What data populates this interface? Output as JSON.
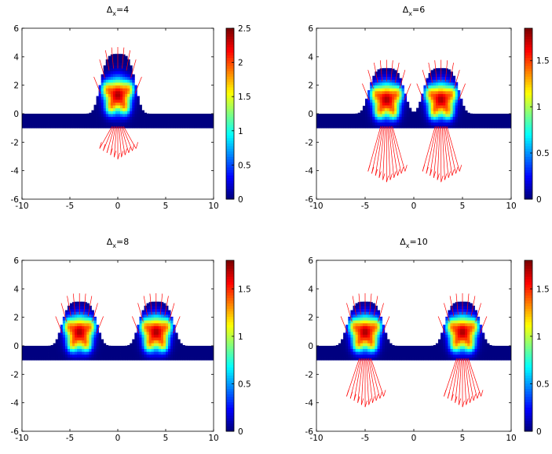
{
  "chart_data": [
    {
      "type": "heatmap",
      "title_base": "Δ",
      "title_sub": "x",
      "title_value": "=4",
      "x_ticks": [
        -10,
        -5,
        0,
        5,
        10
      ],
      "y_ticks": [
        -6,
        -4,
        -2,
        0,
        2,
        4,
        6
      ],
      "xlim": [
        -10,
        10
      ],
      "ylim": [
        -6,
        6
      ],
      "colorbar": {
        "min": 0,
        "max": 2.5,
        "ticks": [
          "0",
          "0.5",
          "1",
          "1.5",
          "2",
          "2.5"
        ],
        "tick_values": [
          0,
          0.5,
          1,
          1.5,
          2,
          2.5
        ]
      },
      "bumps": [
        {
          "center": 0,
          "height": 4.2
        }
      ],
      "arrows_down": [
        {
          "x": 0,
          "length": 2.2
        }
      ],
      "colormap": "jet",
      "overlay_color": "#ff0000"
    },
    {
      "type": "heatmap",
      "title_base": "Δ",
      "title_sub": "x",
      "title_value": "=6",
      "x_ticks": [
        -10,
        -5,
        0,
        5,
        10
      ],
      "y_ticks": [
        -6,
        -4,
        -2,
        0,
        2,
        4,
        6
      ],
      "xlim": [
        -10,
        10
      ],
      "ylim": [
        -6,
        6
      ],
      "colorbar": {
        "min": 0,
        "max": 1.85,
        "ticks": [
          "0",
          "0.5",
          "1",
          "1.5"
        ],
        "tick_values": [
          0,
          0.5,
          1,
          1.5
        ]
      },
      "bumps": [
        {
          "center": -2.8,
          "height": 3.2
        },
        {
          "center": 2.8,
          "height": 3.2
        }
      ],
      "arrows_down": [
        {
          "x": -2.8,
          "length": 3.8
        },
        {
          "x": 2.8,
          "length": 3.8
        }
      ],
      "colormap": "jet",
      "overlay_color": "#ff0000"
    },
    {
      "type": "heatmap",
      "title_base": "Δ",
      "title_sub": "x",
      "title_value": "=8",
      "x_ticks": [
        -10,
        -5,
        0,
        5,
        10
      ],
      "y_ticks": [
        -6,
        -4,
        -2,
        0,
        2,
        4,
        6
      ],
      "xlim": [
        -10,
        10
      ],
      "ylim": [
        -6,
        6
      ],
      "colorbar": {
        "min": 0,
        "max": 1.8,
        "ticks": [
          "0",
          "0.5",
          "1",
          "1.5"
        ],
        "tick_values": [
          0,
          0.5,
          1,
          1.5
        ]
      },
      "bumps": [
        {
          "center": -4,
          "height": 3.1
        },
        {
          "center": 4,
          "height": 3.1
        }
      ],
      "arrows_down": [],
      "colormap": "jet",
      "overlay_color": "#ff0000"
    },
    {
      "type": "heatmap",
      "title_base": "Δ",
      "title_sub": "x",
      "title_value": "=10",
      "x_ticks": [
        -10,
        -5,
        0,
        5,
        10
      ],
      "y_ticks": [
        -6,
        -4,
        -2,
        0,
        2,
        4,
        6
      ],
      "xlim": [
        -10,
        10
      ],
      "ylim": [
        -6,
        6
      ],
      "colorbar": {
        "min": 0,
        "max": 1.8,
        "ticks": [
          "0",
          "0.5",
          "1",
          "1.5"
        ],
        "tick_values": [
          0,
          0.5,
          1,
          1.5
        ]
      },
      "bumps": [
        {
          "center": -5,
          "height": 3.1
        },
        {
          "center": 5,
          "height": 3.1
        }
      ],
      "arrows_down": [
        {
          "x": -5,
          "length": 3.3
        },
        {
          "x": 5,
          "length": 3.3
        }
      ],
      "colormap": "jet",
      "overlay_color": "#ff0000"
    }
  ]
}
